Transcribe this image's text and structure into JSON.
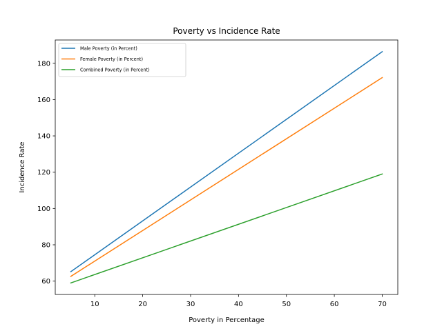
{
  "chart_data": {
    "type": "line",
    "title": "Poverty vs Incidence Rate",
    "xlabel": "Poverty in Percentage",
    "ylabel": "Incidence Rate",
    "xlim": [
      1.75,
      73.25
    ],
    "ylim": [
      52.65,
      192.83
    ],
    "xticks": [
      10,
      20,
      30,
      40,
      50,
      60,
      70
    ],
    "yticks": [
      60,
      80,
      100,
      120,
      140,
      160,
      180
    ],
    "grid": false,
    "legend_position": "upper left",
    "series": [
      {
        "name": "Male Poverty (in Percent)",
        "color": "#1f77b4",
        "x": [
          5,
          70
        ],
        "y": [
          65.2,
          186.4
        ]
      },
      {
        "name": "Female Poverty (in Percent)",
        "color": "#ff7f0e",
        "x": [
          5,
          70
        ],
        "y": [
          62.6,
          172.1
        ]
      },
      {
        "name": "Combined Poverty (in Percent)",
        "color": "#2ca02c",
        "x": [
          5,
          70
        ],
        "y": [
          59.0,
          119.0
        ]
      }
    ]
  }
}
